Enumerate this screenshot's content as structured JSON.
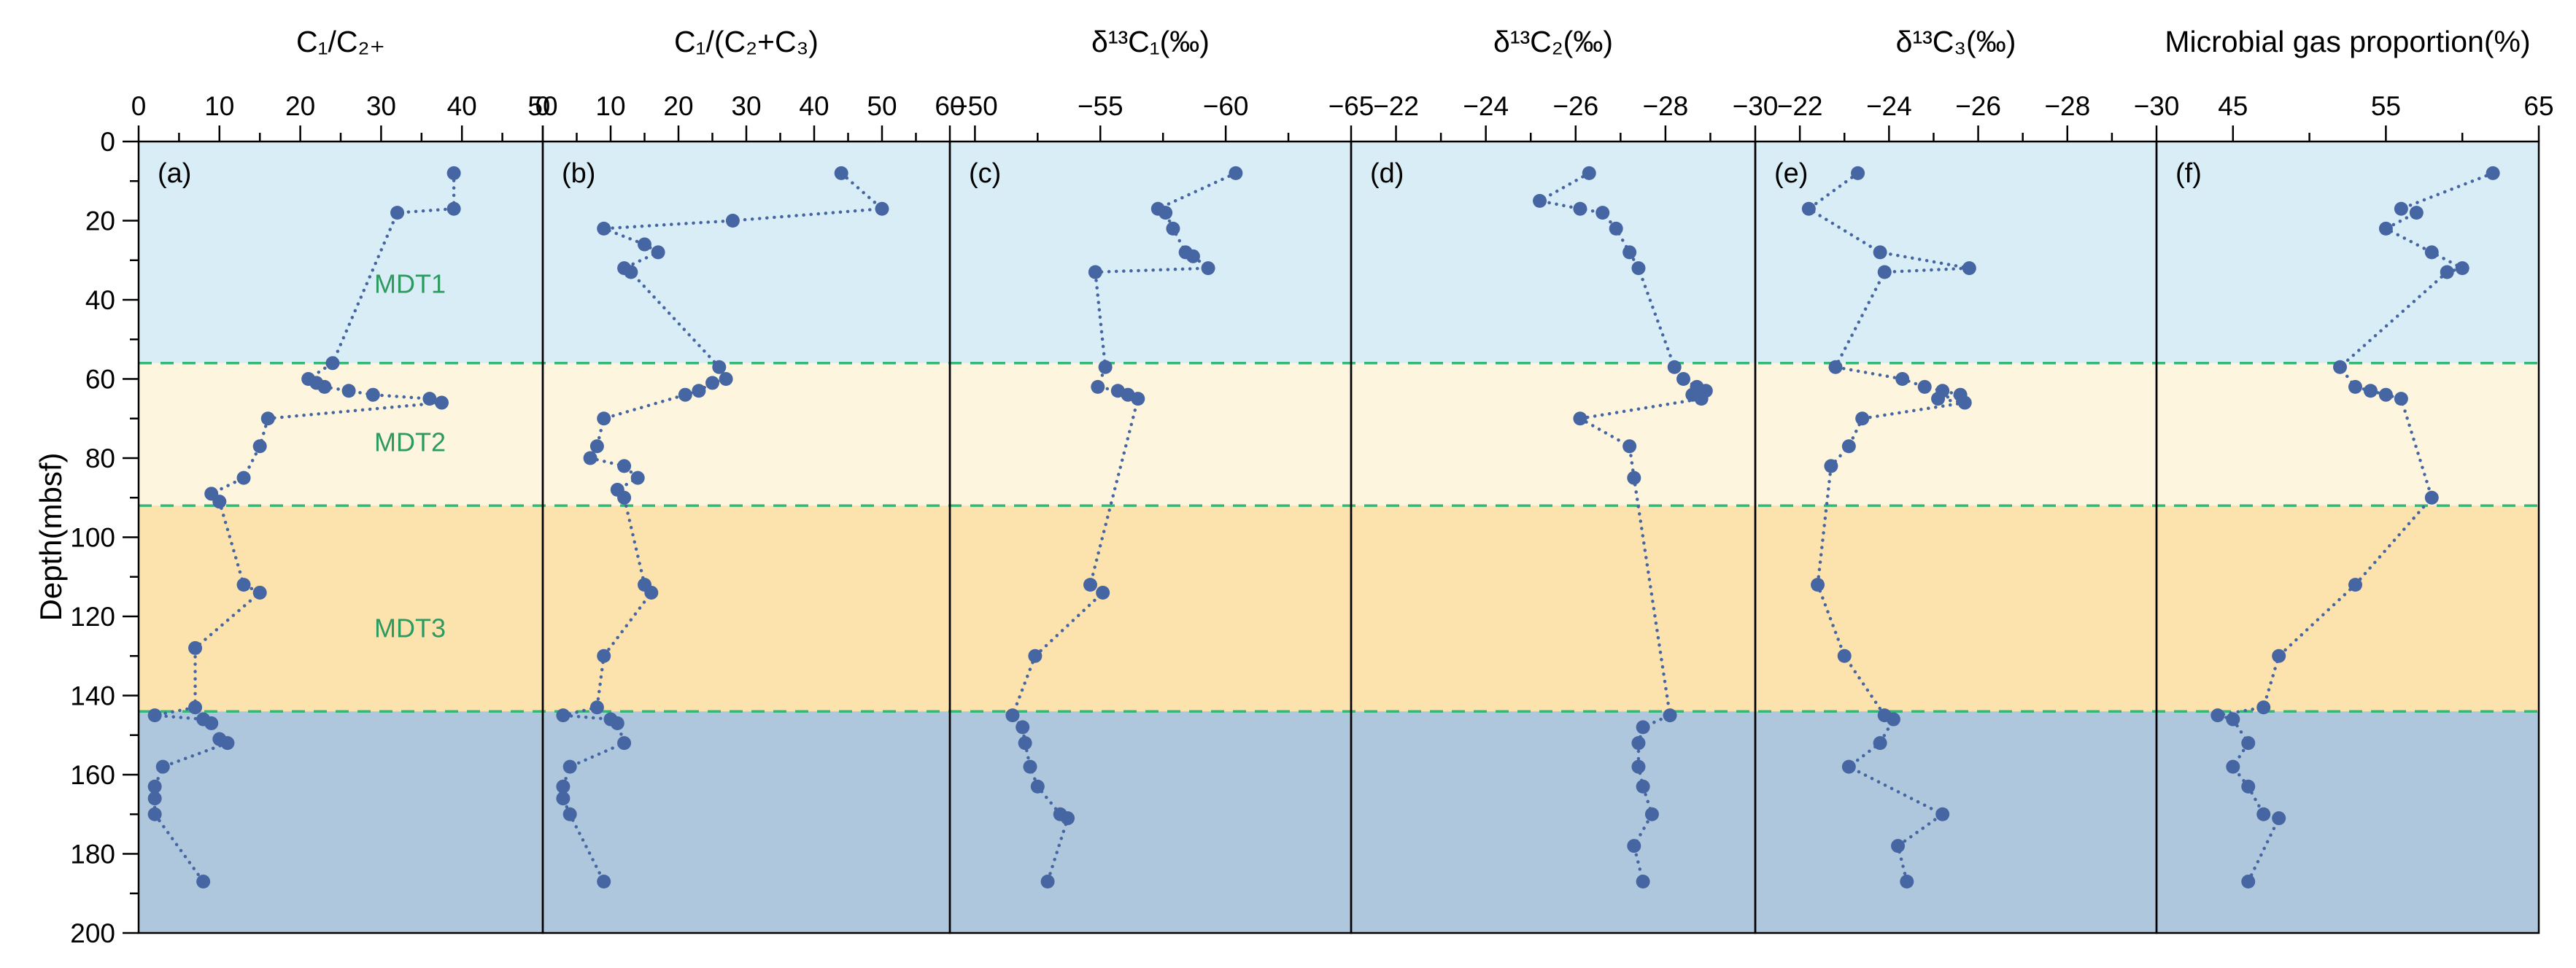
{
  "figure": {
    "y_axis": {
      "label": "Depth(mbsf)",
      "min": 0,
      "max": 200,
      "tick_step": 20,
      "minor_step": 10
    },
    "zones": [
      {
        "name": "mdt1",
        "from": 0,
        "to": 56,
        "color": "#d9edf6"
      },
      {
        "name": "mdt2",
        "from": 56,
        "to": 92,
        "color": "#fdf5dd"
      },
      {
        "name": "mdt3",
        "from": 92,
        "to": 144,
        "color": "#fce3ae"
      },
      {
        "name": "lower",
        "from": 144,
        "to": 200,
        "color": "#aec7dc"
      }
    ],
    "boundary_depths": [
      56,
      92,
      144
    ],
    "boundary_color": "#36b779",
    "zone_labels": [
      {
        "text": "MDT1",
        "depth": 36
      },
      {
        "text": "MDT2",
        "depth": 76
      },
      {
        "text": "MDT3",
        "depth": 123
      }
    ],
    "zone_label_color": "#2d9a60",
    "point_color": "#4565a3",
    "panel_letters": [
      "(a)",
      "(b)",
      "(c)",
      "(d)",
      "(e)",
      "(f)"
    ]
  },
  "chart_data": [
    {
      "panel": "a",
      "type": "scatter",
      "title": "C₁/C₂₊",
      "xlim": [
        0,
        50
      ],
      "xticks": [
        0,
        10,
        20,
        30,
        40,
        50
      ],
      "xticks_minor": [
        5,
        15,
        25,
        35,
        45
      ],
      "xlabel": "C1/C2+",
      "ylabel": "Depth (mbsf)",
      "ylim": [
        0,
        200
      ],
      "points": [
        [
          8,
          39
        ],
        [
          17,
          39
        ],
        [
          18,
          32
        ],
        [
          56,
          24
        ],
        [
          60,
          21
        ],
        [
          61,
          22
        ],
        [
          62,
          23
        ],
        [
          63,
          26
        ],
        [
          64,
          29
        ],
        [
          65,
          36
        ],
        [
          66,
          37.5
        ],
        [
          70,
          16
        ],
        [
          77,
          15
        ],
        [
          85,
          13
        ],
        [
          89,
          9
        ],
        [
          91,
          10
        ],
        [
          112,
          13
        ],
        [
          114,
          15
        ],
        [
          128,
          7
        ],
        [
          143,
          7
        ],
        [
          145,
          2
        ],
        [
          146,
          8
        ],
        [
          147,
          9
        ],
        [
          151,
          10
        ],
        [
          152,
          11
        ],
        [
          158,
          3
        ],
        [
          163,
          2
        ],
        [
          166,
          2
        ],
        [
          170,
          2
        ],
        [
          187,
          8
        ]
      ]
    },
    {
      "panel": "b",
      "type": "scatter",
      "title": "C₁/(C₂+C₃)",
      "xlim": [
        0,
        60
      ],
      "xticks": [
        0,
        10,
        20,
        30,
        40,
        50,
        60
      ],
      "xticks_minor": [
        5,
        15,
        25,
        35,
        45,
        55
      ],
      "xlabel": "C1/(C2+C3)",
      "ylabel": "Depth (mbsf)",
      "ylim": [
        0,
        200
      ],
      "points": [
        [
          8,
          44
        ],
        [
          17,
          50
        ],
        [
          20,
          28
        ],
        [
          22,
          9
        ],
        [
          26,
          15
        ],
        [
          28,
          17
        ],
        [
          32,
          12
        ],
        [
          33,
          13
        ],
        [
          57,
          26
        ],
        [
          60,
          27
        ],
        [
          61,
          25
        ],
        [
          63,
          23
        ],
        [
          64,
          21
        ],
        [
          70,
          9
        ],
        [
          77,
          8
        ],
        [
          80,
          7
        ],
        [
          82,
          12
        ],
        [
          85,
          14
        ],
        [
          88,
          11
        ],
        [
          90,
          12
        ],
        [
          112,
          15
        ],
        [
          114,
          16
        ],
        [
          130,
          9
        ],
        [
          143,
          8
        ],
        [
          145,
          3
        ],
        [
          146,
          10
        ],
        [
          147,
          11
        ],
        [
          152,
          12
        ],
        [
          158,
          4
        ],
        [
          163,
          3
        ],
        [
          166,
          3
        ],
        [
          170,
          4
        ],
        [
          187,
          9
        ]
      ]
    },
    {
      "panel": "c",
      "type": "scatter",
      "title": "δ¹³C₁(‰)",
      "xlim": [
        -49,
        -65
      ],
      "xticks": [
        -50,
        -55,
        -60,
        -65
      ],
      "xticks_minor": [
        -52.5,
        -57.5,
        -62.5
      ],
      "xlabel": "d13C1 (permil)",
      "ylabel": "Depth (mbsf)",
      "ylim": [
        0,
        200
      ],
      "points": [
        [
          8,
          -60.4
        ],
        [
          17,
          -57.3
        ],
        [
          18,
          -57.6
        ],
        [
          22,
          -57.9
        ],
        [
          28,
          -58.4
        ],
        [
          29,
          -58.7
        ],
        [
          32,
          -59.3
        ],
        [
          33,
          -54.8
        ],
        [
          57,
          -55.2
        ],
        [
          62,
          -54.9
        ],
        [
          63,
          -55.7
        ],
        [
          64,
          -56.1
        ],
        [
          65,
          -56.5
        ],
        [
          112,
          -54.6
        ],
        [
          114,
          -55.1
        ],
        [
          130,
          -52.4
        ],
        [
          145,
          -51.5
        ],
        [
          148,
          -51.9
        ],
        [
          152,
          -52.0
        ],
        [
          158,
          -52.2
        ],
        [
          163,
          -52.5
        ],
        [
          170,
          -53.4
        ],
        [
          171,
          -53.7
        ],
        [
          187,
          -52.9
        ]
      ]
    },
    {
      "panel": "d",
      "type": "scatter",
      "title": "δ¹³C₂(‰)",
      "xlim": [
        -21,
        -30
      ],
      "xticks": [
        -22,
        -24,
        -26,
        -28,
        -30
      ],
      "xticks_minor": [
        -23,
        -25,
        -27,
        -29
      ],
      "xlabel": "d13C2 (permil)",
      "ylabel": "Depth (mbsf)",
      "ylim": [
        0,
        200
      ],
      "points": [
        [
          8,
          -26.3
        ],
        [
          15,
          -25.2
        ],
        [
          17,
          -26.1
        ],
        [
          18,
          -26.6
        ],
        [
          22,
          -26.9
        ],
        [
          28,
          -27.2
        ],
        [
          32,
          -27.4
        ],
        [
          57,
          -28.2
        ],
        [
          60,
          -28.4
        ],
        [
          62,
          -28.7
        ],
        [
          63,
          -28.9
        ],
        [
          64,
          -28.6
        ],
        [
          65,
          -28.8
        ],
        [
          70,
          -26.1
        ],
        [
          77,
          -27.2
        ],
        [
          85,
          -27.3
        ],
        [
          145,
          -28.1
        ],
        [
          148,
          -27.5
        ],
        [
          152,
          -27.4
        ],
        [
          158,
          -27.4
        ],
        [
          163,
          -27.5
        ],
        [
          170,
          -27.7
        ],
        [
          178,
          -27.3
        ],
        [
          187,
          -27.5
        ]
      ]
    },
    {
      "panel": "e",
      "type": "scatter",
      "title": "δ¹³C₃(‰)",
      "xlim": [
        -21,
        -30
      ],
      "xticks": [
        -22,
        -24,
        -26,
        -28,
        -30
      ],
      "xticks_minor": [
        -23,
        -25,
        -27,
        -29
      ],
      "xlabel": "d13C3 (permil)",
      "ylabel": "Depth (mbsf)",
      "ylim": [
        0,
        200
      ],
      "points": [
        [
          8,
          -23.3
        ],
        [
          17,
          -22.2
        ],
        [
          28,
          -23.8
        ],
        [
          32,
          -25.8
        ],
        [
          33,
          -23.9
        ],
        [
          57,
          -22.8
        ],
        [
          60,
          -24.3
        ],
        [
          62,
          -24.8
        ],
        [
          63,
          -25.2
        ],
        [
          64,
          -25.6
        ],
        [
          65,
          -25.1
        ],
        [
          66,
          -25.7
        ],
        [
          70,
          -23.4
        ],
        [
          77,
          -23.1
        ],
        [
          82,
          -22.7
        ],
        [
          112,
          -22.4
        ],
        [
          130,
          -23.0
        ],
        [
          145,
          -23.9
        ],
        [
          146,
          -24.1
        ],
        [
          152,
          -23.8
        ],
        [
          158,
          -23.1
        ],
        [
          170,
          -25.2
        ],
        [
          178,
          -24.2
        ],
        [
          187,
          -24.4
        ]
      ]
    },
    {
      "panel": "f",
      "type": "scatter",
      "title": "Microbial gas proportion(%)",
      "xlim": [
        40,
        65
      ],
      "xticks": [
        45,
        55,
        65
      ],
      "xticks_minor": [
        50,
        60
      ],
      "xlabel": "Microbial gas proportion (%)",
      "ylabel": "Depth (mbsf)",
      "ylim": [
        0,
        200
      ],
      "points": [
        [
          8,
          62
        ],
        [
          17,
          56
        ],
        [
          18,
          57
        ],
        [
          22,
          55
        ],
        [
          28,
          58
        ],
        [
          32,
          60
        ],
        [
          33,
          59
        ],
        [
          57,
          52
        ],
        [
          62,
          53
        ],
        [
          63,
          54
        ],
        [
          64,
          55
        ],
        [
          65,
          56
        ],
        [
          90,
          58
        ],
        [
          112,
          53
        ],
        [
          130,
          48
        ],
        [
          143,
          47
        ],
        [
          145,
          44
        ],
        [
          146,
          45
        ],
        [
          152,
          46
        ],
        [
          158,
          45
        ],
        [
          163,
          46
        ],
        [
          170,
          47
        ],
        [
          171,
          48
        ],
        [
          187,
          46
        ]
      ]
    }
  ]
}
